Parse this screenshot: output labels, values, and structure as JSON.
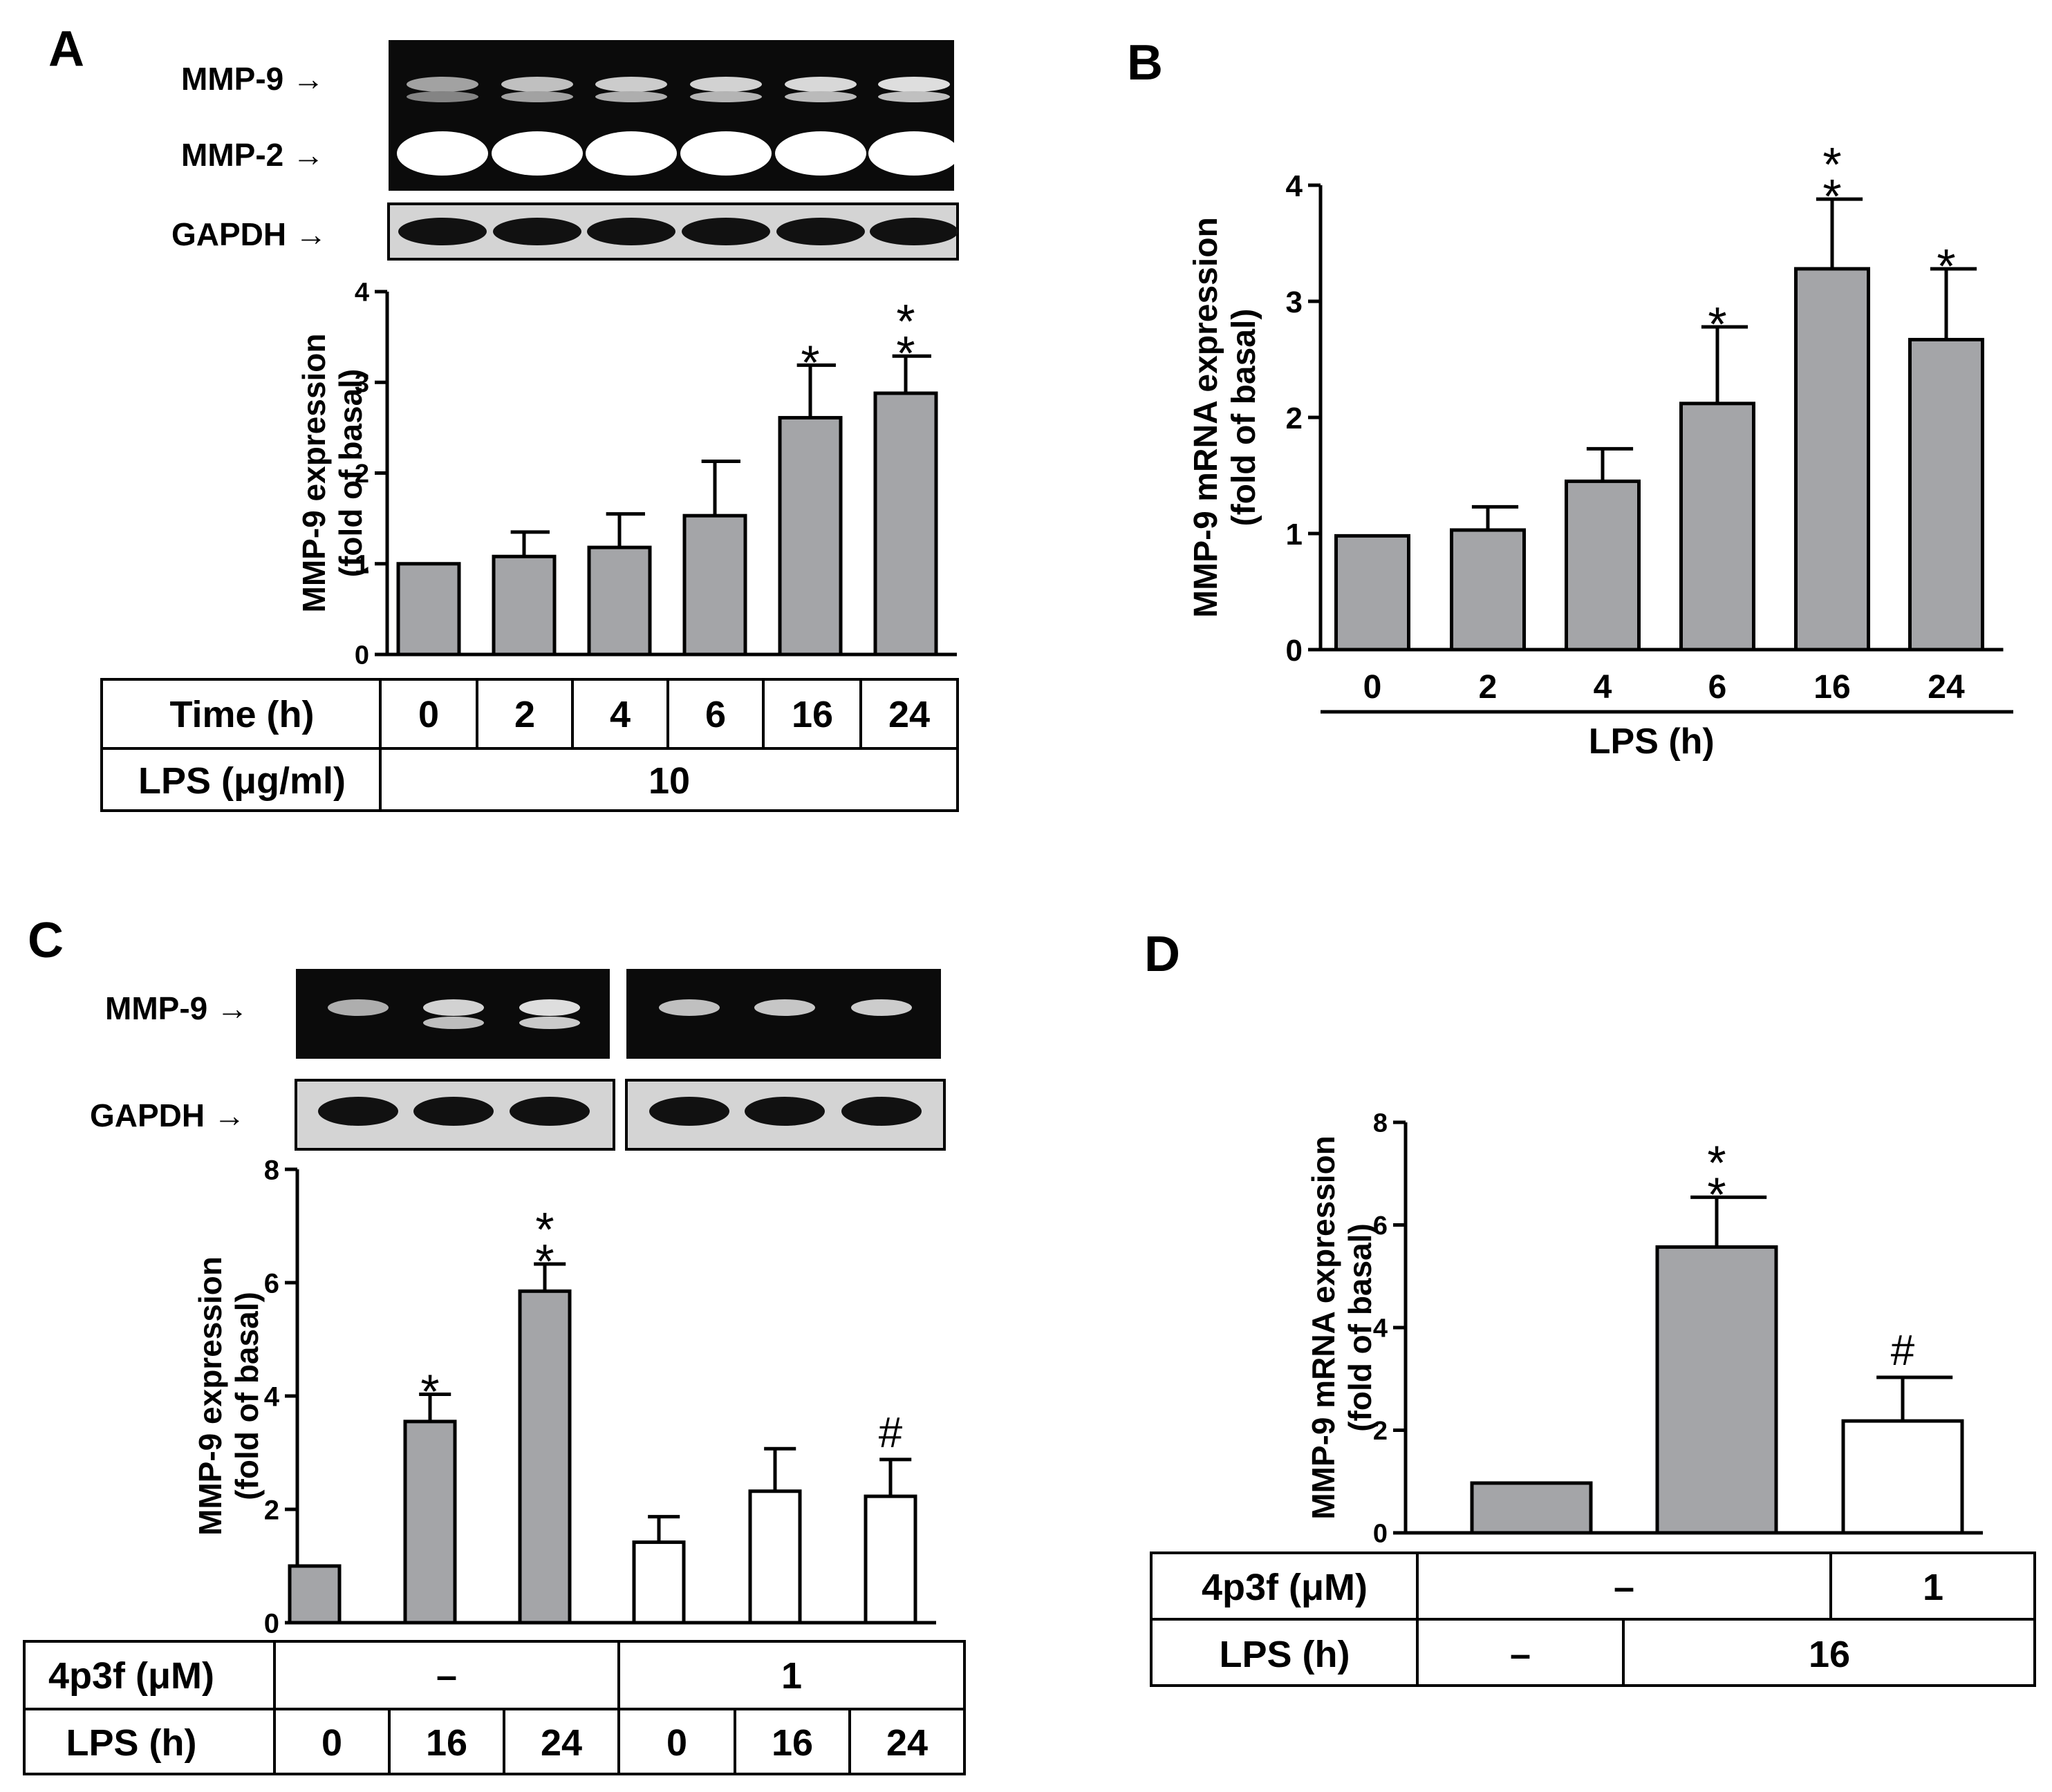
{
  "panels": {
    "A": {
      "letter": "A"
    },
    "B": {
      "letter": "B"
    },
    "C": {
      "letter": "C"
    },
    "D": {
      "letter": "D"
    }
  },
  "blots": {
    "A": {
      "mmp9_label": "MMP-9 →",
      "mmp2_label": "MMP-2 →",
      "gapdh_label": "GAPDH →",
      "lanes": 6,
      "mmp9_intensity": [
        0.35,
        0.6,
        0.7,
        0.75,
        0.8,
        0.85
      ]
    },
    "C": {
      "mmp9_label": "MMP-9 →",
      "gapdh_label": "GAPDH →",
      "lanes_per_group": 3,
      "mmp9_intensity": [
        0.45,
        0.75,
        0.85,
        0.6,
        0.65,
        0.7
      ]
    }
  },
  "tables": {
    "A": {
      "row1_label": "Time (h)",
      "row1_values": [
        "0",
        "2",
        "4",
        "6",
        "16",
        "24"
      ],
      "row2_label": "LPS (μg/ml)",
      "row2_value": "10"
    },
    "C": {
      "row1_label": "4p3f (μM)",
      "row1_values": [
        "–",
        "1"
      ],
      "row2_label": "LPS (h)",
      "row2_values": [
        "0",
        "16",
        "24",
        "0",
        "16",
        "24"
      ]
    },
    "D": {
      "row1_label": "4p3f (μM)",
      "row1_values": [
        "–",
        "1"
      ],
      "row2_label": "LPS (h)",
      "row2_values": [
        "–",
        "16"
      ]
    }
  },
  "colors": {
    "gray_bar": "#a4a5a8",
    "white_bar": "#ffffff",
    "ink": "#000000"
  },
  "chart_data": [
    {
      "id": "A",
      "type": "bar",
      "title": "",
      "xlabel": "",
      "ylabel": "MMP-9 expression (fold of basal)",
      "ylabel_lines": [
        "MMP-9 expression",
        "(fold of basal)"
      ],
      "ylim": [
        0,
        4
      ],
      "yticks": [
        "0",
        "1",
        "2",
        "3",
        "4"
      ],
      "categories": [
        "0",
        "2",
        "4",
        "6",
        "16",
        "24"
      ],
      "values": [
        1.0,
        1.08,
        1.18,
        1.53,
        2.61,
        2.88
      ],
      "errors": [
        0,
        0.27,
        0.37,
        0.6,
        0.58,
        0.41
      ],
      "fills": [
        "gray",
        "gray",
        "gray",
        "gray",
        "gray",
        "gray"
      ],
      "marks": [
        "",
        "",
        "",
        "",
        "*",
        "**"
      ]
    },
    {
      "id": "B",
      "type": "bar",
      "title": "",
      "xlabel": "LPS (h)",
      "ylabel": "MMP-9 mRNA expression (fold of basal)",
      "ylabel_lines": [
        "MMP-9 mRNA expression",
        "(fold of basal)"
      ],
      "ylim": [
        0,
        4
      ],
      "yticks": [
        "0",
        "1",
        "2",
        "3",
        "4"
      ],
      "categories": [
        "0",
        "2",
        "4",
        "6",
        "16",
        "24"
      ],
      "values": [
        0.98,
        1.03,
        1.45,
        2.12,
        3.28,
        2.67
      ],
      "errors": [
        0,
        0.2,
        0.28,
        0.66,
        0.6,
        0.61
      ],
      "fills": [
        "gray",
        "gray",
        "gray",
        "gray",
        "gray",
        "gray"
      ],
      "marks": [
        "",
        "",
        "",
        "*",
        "**",
        "*"
      ]
    },
    {
      "id": "C",
      "type": "bar",
      "title": "",
      "xlabel": "",
      "ylabel": "MMP-9 expression (fold of basal)",
      "ylabel_lines": [
        "MMP-9 expression",
        "(fold of basal)"
      ],
      "ylim": [
        0,
        8
      ],
      "yticks": [
        "0",
        "2",
        "4",
        "6",
        "8"
      ],
      "categories": [
        "0",
        "16",
        "24",
        "0",
        "16",
        "24"
      ],
      "values": [
        1.0,
        3.55,
        5.85,
        1.42,
        2.32,
        2.23
      ],
      "errors": [
        0,
        0.48,
        0.48,
        0.45,
        0.75,
        0.65
      ],
      "fills": [
        "gray",
        "gray",
        "gray",
        "white",
        "white",
        "white"
      ],
      "marks": [
        "",
        "*",
        "**",
        "",
        "",
        "#"
      ]
    },
    {
      "id": "D",
      "type": "bar",
      "title": "",
      "xlabel": "",
      "ylabel": "MMP-9 mRNA expression (fold of basal)",
      "ylabel_lines": [
        "MMP-9 mRNA expression",
        "(fold of basal)"
      ],
      "ylim": [
        0,
        8
      ],
      "yticks": [
        "0",
        "2",
        "4",
        "6",
        "8"
      ],
      "categories": [
        "–",
        "16",
        "16 + 4p3f"
      ],
      "values": [
        0.97,
        5.57,
        2.18
      ],
      "errors": [
        0,
        0.97,
        0.85
      ],
      "fills": [
        "gray",
        "gray",
        "white"
      ],
      "marks": [
        "",
        "**",
        "#"
      ]
    }
  ]
}
